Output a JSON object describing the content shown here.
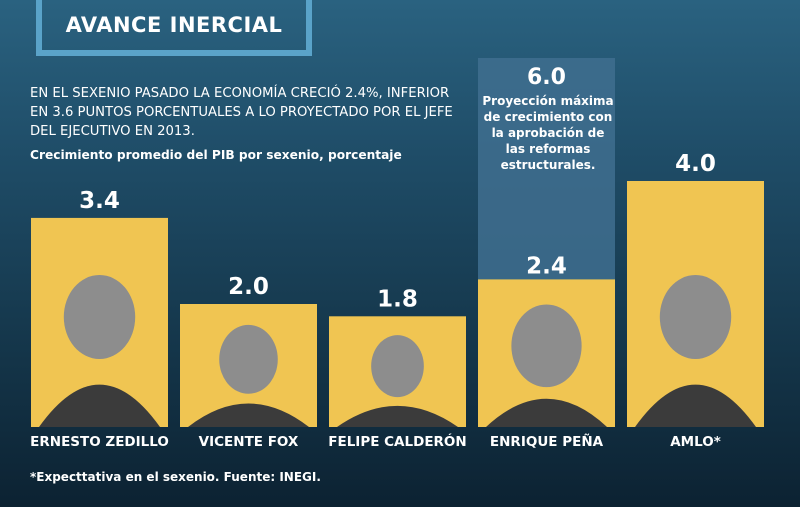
{
  "title": "AVANCE INERCIAL",
  "headline": "EN EL SEXENIO PASADO LA ECONOMÍA CRECIÓ 2.4%, INFERIOR EN 3.6 PUNTOS PORCENTUALES A LO PROYECTADO POR EL JEFE DEL EJECUTIVO EN 2013.",
  "footnote": "*Expecttativa en el sexenio. Fuente: INEGI.",
  "colors": {
    "bar": "#f0c552",
    "projection": "#3f6f8f",
    "background_top": "#2a6280",
    "background_bottom": "#0c2232",
    "title_border": "#5aa3c9"
  },
  "chart_data": {
    "type": "bar",
    "title": "Crecimiento promedio del PIB por sexenio, porcentaje",
    "xlabel": "",
    "ylabel": "",
    "ylim": [
      0,
      6.0
    ],
    "categories": [
      "ERNESTO ZEDILLO",
      "VICENTE FOX",
      "FELIPE CALDERÓN",
      "ENRIQUE PEÑA",
      "AMLO*"
    ],
    "values": [
      3.4,
      2.0,
      1.8,
      2.4,
      4.0
    ],
    "value_labels": [
      "3.4",
      "2.0",
      "1.8",
      "2.4",
      "4.0"
    ],
    "projection": {
      "category": "ENRIQUE PEÑA",
      "value": 6.0,
      "value_label": "6.0",
      "annotation": "Proyección máxima de crecimiento con la aprobación de las reformas estructurales."
    },
    "grid": false,
    "legend": "none"
  }
}
